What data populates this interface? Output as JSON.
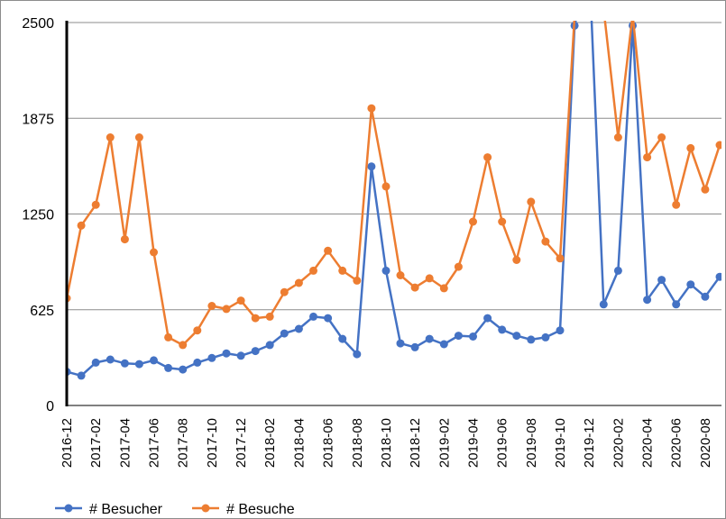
{
  "chart_data": {
    "type": "line",
    "categories": [
      "2016-12",
      "2017-01",
      "2017-02",
      "2017-03",
      "2017-04",
      "2017-05",
      "2017-06",
      "2017-07",
      "2017-08",
      "2017-09",
      "2017-10",
      "2017-11",
      "2017-12",
      "2018-01",
      "2018-02",
      "2018-03",
      "2018-04",
      "2018-05",
      "2018-06",
      "2018-07",
      "2018-08",
      "2018-09",
      "2018-10",
      "2018-11",
      "2018-12",
      "2019-01",
      "2019-02",
      "2019-03",
      "2019-04",
      "2019-05",
      "2019-06",
      "2019-07",
      "2019-08",
      "2019-09",
      "2019-10",
      "2019-11",
      "2019-12",
      "2020-01",
      "2020-02",
      "2020-03",
      "2020-04",
      "2020-05",
      "2020-06",
      "2020-07",
      "2020-08",
      "2020-09"
    ],
    "tick_labels": [
      "2016-12",
      "2017-02",
      "2017-04",
      "2017-06",
      "2017-08",
      "2017-10",
      "2017-12",
      "2018-02",
      "2018-04",
      "2018-06",
      "2018-08",
      "2018-10",
      "2018-12",
      "2019-02",
      "2019-04",
      "2019-06",
      "2019-08",
      "2019-10",
      "2019-12",
      "2020-02",
      "2020-04",
      "2020-06",
      "2020-08"
    ],
    "y_ticks": [
      "0",
      "625",
      "1250",
      "1875",
      "2500"
    ],
    "ylim": [
      0,
      2500
    ],
    "grid": true,
    "legend_position": "bottom-left",
    "series": [
      {
        "name": "# Besucher",
        "color": "#4472c4",
        "values": [
          220,
          195,
          280,
          300,
          275,
          270,
          295,
          245,
          235,
          280,
          310,
          340,
          325,
          355,
          395,
          470,
          500,
          580,
          570,
          435,
          335,
          1560,
          880,
          405,
          380,
          435,
          400,
          455,
          450,
          570,
          495,
          455,
          430,
          445,
          490,
          2480,
          2900,
          660,
          880,
          2480,
          690,
          820,
          660,
          790,
          710,
          840
        ]
      },
      {
        "name": "# Besuche",
        "color": "#ed7d31",
        "values": [
          700,
          1175,
          1310,
          1750,
          1085,
          1750,
          1000,
          445,
          395,
          490,
          650,
          630,
          685,
          570,
          580,
          740,
          800,
          880,
          1010,
          880,
          815,
          1940,
          1430,
          850,
          770,
          830,
          765,
          905,
          1200,
          1620,
          1200,
          950,
          1330,
          1070,
          960,
          2540,
          3100,
          2590,
          1750,
          2550,
          1620,
          1750,
          1310,
          1680,
          1410,
          1700
        ]
      }
    ]
  }
}
